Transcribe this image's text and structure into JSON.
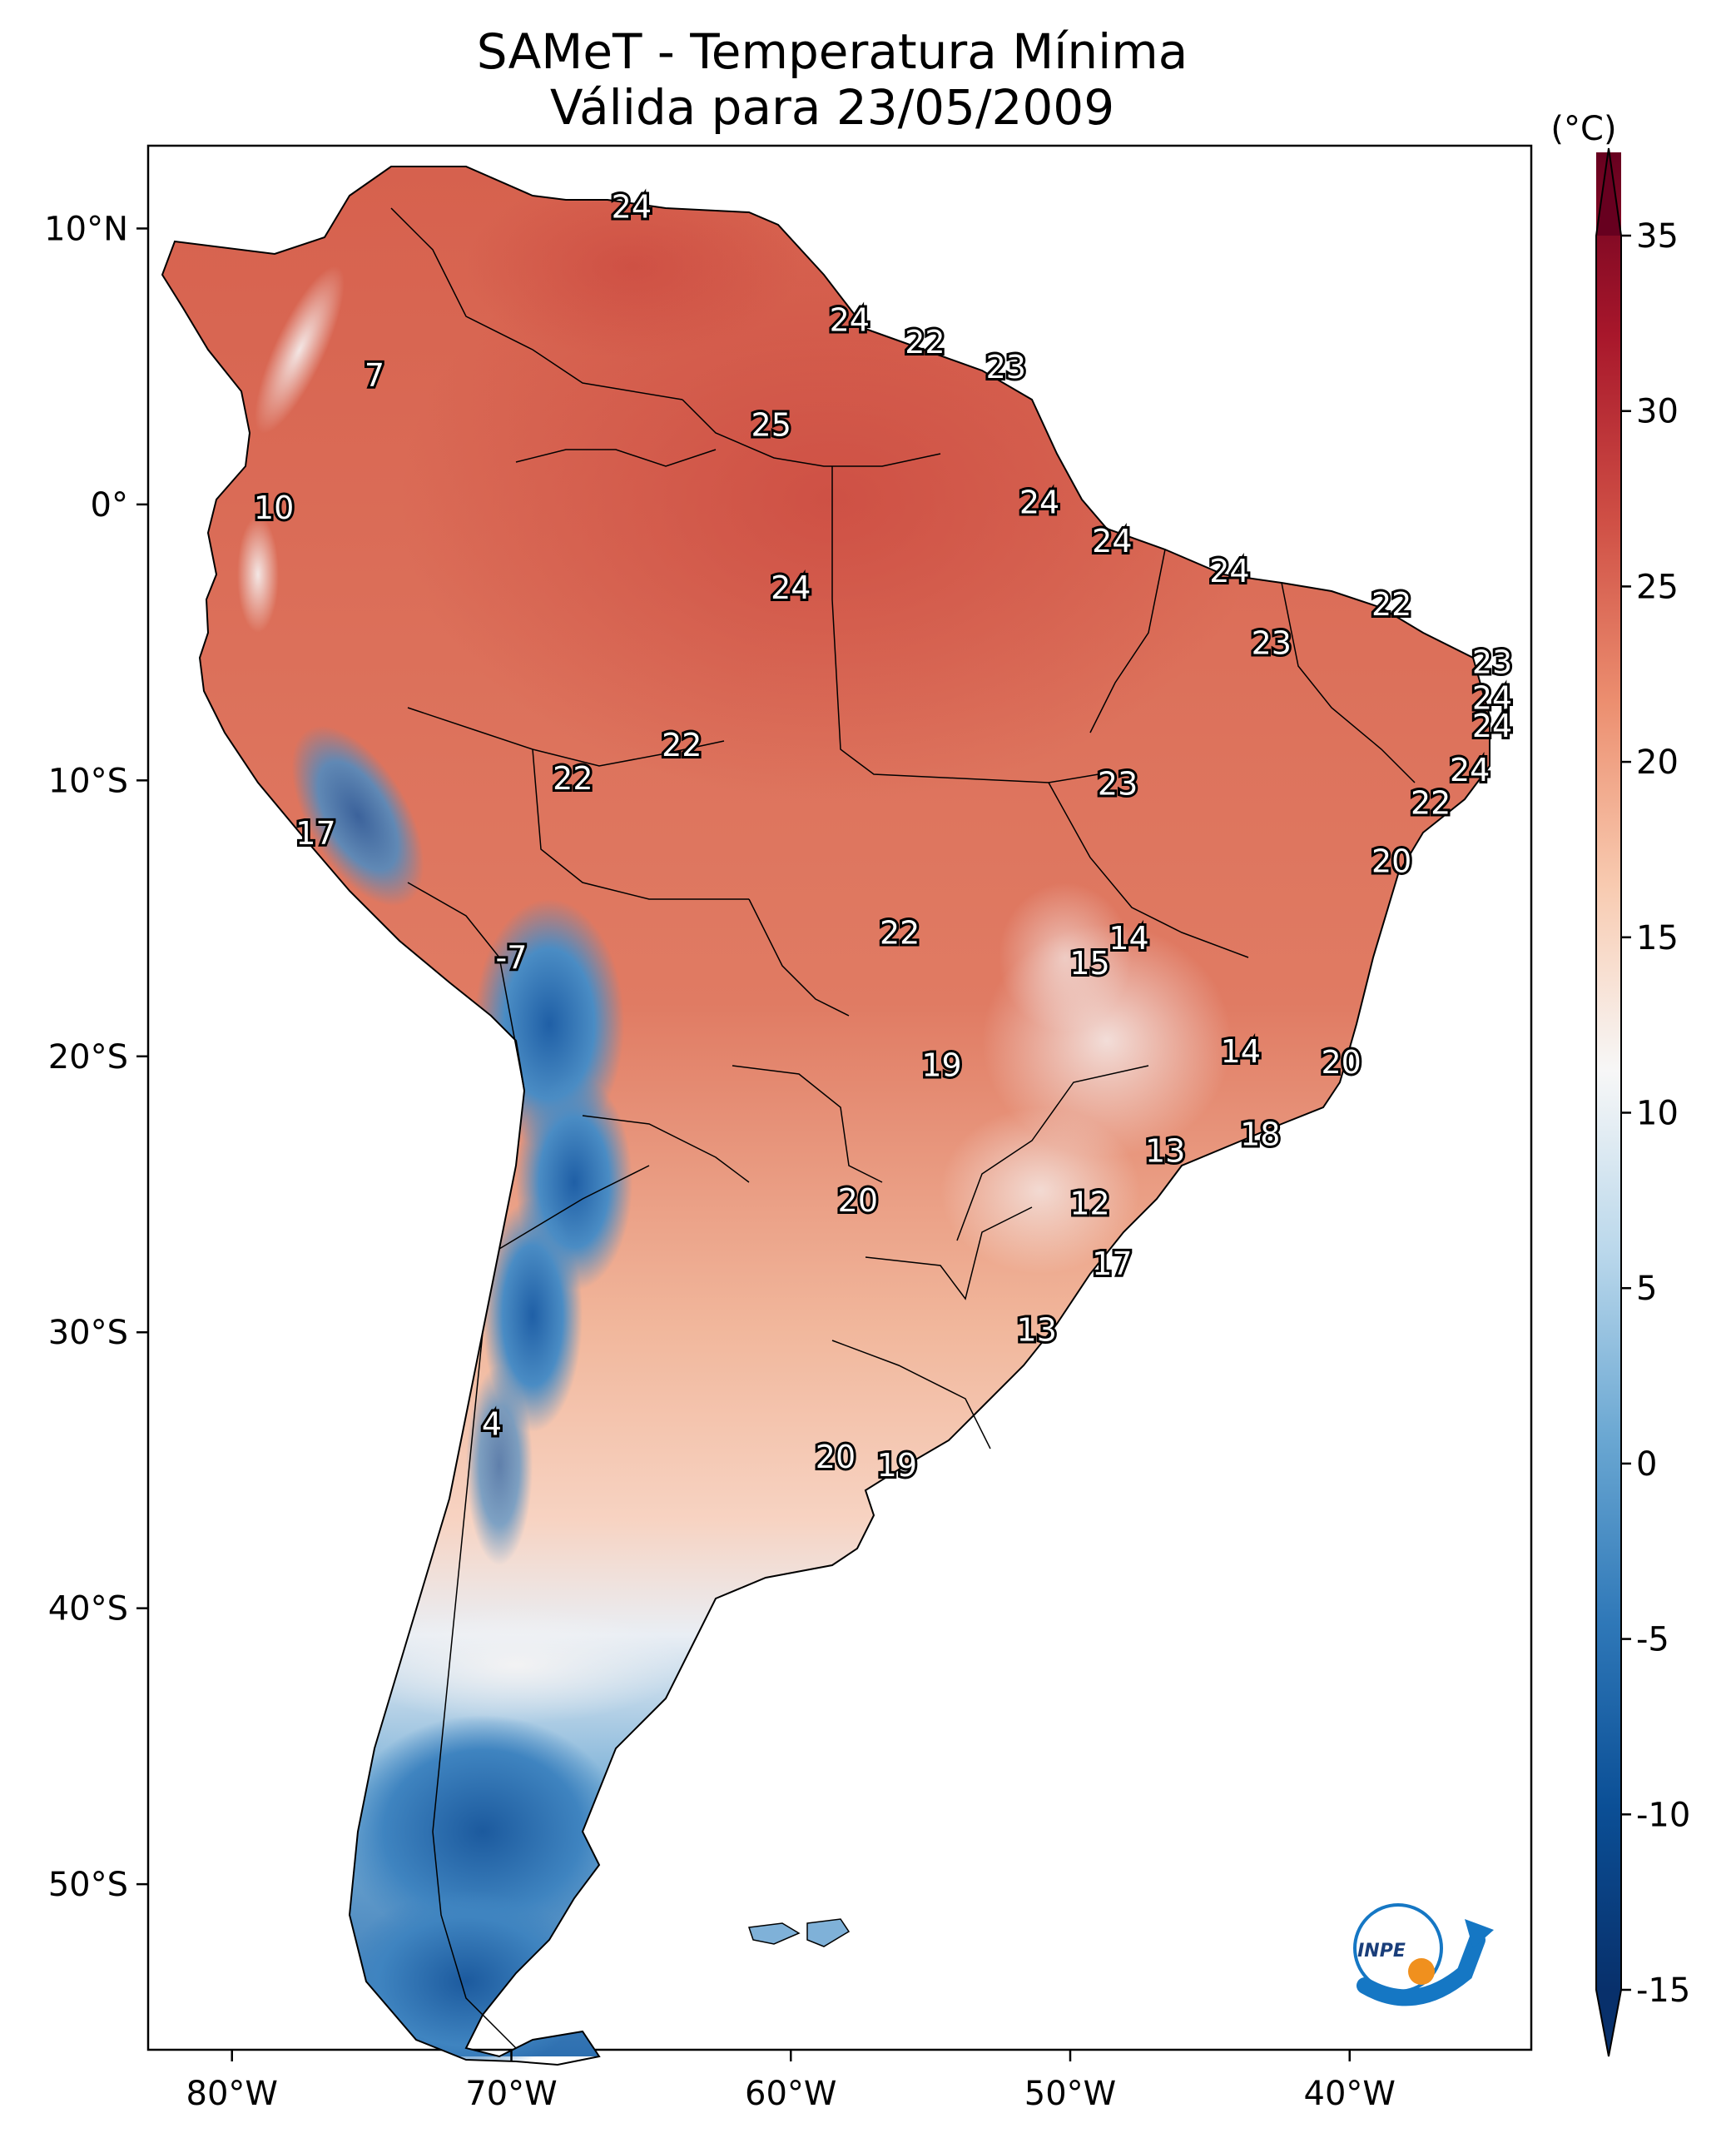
{
  "title": "SAMeT - Temperatura Mínima",
  "subtitle": "Válida para 23/05/2009",
  "colorbar": {
    "unit": "(°C)",
    "ticks": [
      "35",
      "30",
      "25",
      "20",
      "15",
      "10",
      "5",
      "0",
      "-5",
      "-10",
      "-15"
    ],
    "tick_values": [
      35,
      30,
      25,
      20,
      15,
      10,
      5,
      0,
      -5,
      -10,
      -15
    ],
    "range": [
      -15,
      35
    ],
    "colormap": "RdBu_r",
    "colors": {
      "min": "#08306b",
      "low": "#2166ac",
      "zero": "#92c5de",
      "mid": "#f7f7f7",
      "warm": "#f4a582",
      "hot": "#d6604d",
      "max": "#67001f"
    }
  },
  "axes": {
    "lon_labels": [
      "80°W",
      "70°W",
      "60°W",
      "50°W",
      "40°W"
    ],
    "lon_values": [
      -80,
      -70,
      -60,
      -50,
      -40
    ],
    "lat_labels": [
      "10°N",
      "0°",
      "10°S",
      "20°S",
      "30°S",
      "40°S",
      "50°S"
    ],
    "lat_values": [
      10,
      0,
      -10,
      -20,
      -30,
      -40,
      -50
    ],
    "lon_range": [
      -83,
      -33.5
    ],
    "lat_range": [
      -56,
      13
    ]
  },
  "logo": {
    "text": "INPE",
    "name": "inpe-logo"
  },
  "chart_data": {
    "type": "map",
    "variable": "Temperatura Mínima",
    "unit": "°C",
    "station_values": [
      {
        "label": "24",
        "lon": -65.7,
        "lat": 10.7
      },
      {
        "label": "7",
        "lon": -74.9,
        "lat": 4.6
      },
      {
        "label": "10",
        "lon": -78.5,
        "lat": -0.2
      },
      {
        "label": "24",
        "lon": -57.9,
        "lat": 6.6
      },
      {
        "label": "22",
        "lon": -55.2,
        "lat": 5.8
      },
      {
        "label": "23",
        "lon": -52.3,
        "lat": 4.9
      },
      {
        "label": "25",
        "lon": -60.7,
        "lat": 2.8
      },
      {
        "label": "24",
        "lon": -51.1,
        "lat": 0.0
      },
      {
        "label": "24",
        "lon": -48.5,
        "lat": -1.4
      },
      {
        "label": "24",
        "lon": -44.3,
        "lat": -2.5
      },
      {
        "label": "24",
        "lon": -60.0,
        "lat": -3.1
      },
      {
        "label": "22",
        "lon": -38.5,
        "lat": -3.7
      },
      {
        "label": "23",
        "lon": -42.8,
        "lat": -5.1
      },
      {
        "label": "23",
        "lon": -34.9,
        "lat": -5.8
      },
      {
        "label": "24",
        "lon": -34.9,
        "lat": -7.1
      },
      {
        "label": "24",
        "lon": -34.9,
        "lat": -8.1
      },
      {
        "label": "24",
        "lon": -35.7,
        "lat": -9.7
      },
      {
        "label": "22",
        "lon": -37.1,
        "lat": -10.9
      },
      {
        "label": "22",
        "lon": -63.9,
        "lat": -8.8
      },
      {
        "label": "22",
        "lon": -67.8,
        "lat": -10.0
      },
      {
        "label": "23",
        "lon": -48.3,
        "lat": -10.2
      },
      {
        "label": "20",
        "lon": -38.5,
        "lat": -13.0
      },
      {
        "label": "17",
        "lon": -77.0,
        "lat": -12.0
      },
      {
        "label": "14",
        "lon": -47.9,
        "lat": -15.8
      },
      {
        "label": "15",
        "lon": -49.3,
        "lat": -16.7
      },
      {
        "label": "22",
        "lon": -56.1,
        "lat": -15.6
      },
      {
        "label": "-7",
        "lon": -70.0,
        "lat": -16.5
      },
      {
        "label": "14",
        "lon": -43.9,
        "lat": -19.9
      },
      {
        "label": "20",
        "lon": -40.3,
        "lat": -20.3
      },
      {
        "label": "19",
        "lon": -54.6,
        "lat": -20.4
      },
      {
        "label": "13",
        "lon": -46.6,
        "lat": -23.5
      },
      {
        "label": "18",
        "lon": -43.2,
        "lat": -22.9
      },
      {
        "label": "20",
        "lon": -57.6,
        "lat": -25.3
      },
      {
        "label": "12",
        "lon": -49.3,
        "lat": -25.4
      },
      {
        "label": "17",
        "lon": -48.5,
        "lat": -27.6
      },
      {
        "label": "13",
        "lon": -51.2,
        "lat": -30.0
      },
      {
        "label": "4",
        "lon": -70.7,
        "lat": -33.4
      },
      {
        "label": "20",
        "lon": -58.4,
        "lat": -34.6
      },
      {
        "label": "19",
        "lon": -56.2,
        "lat": -34.9
      }
    ]
  }
}
